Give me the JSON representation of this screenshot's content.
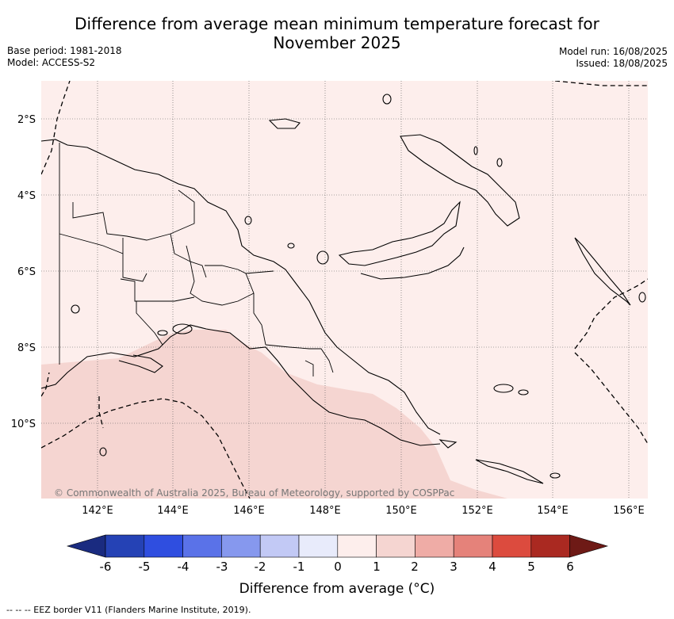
{
  "header": {
    "title_line1": "Difference from average mean minimum temperature forecast for",
    "title_line2": "November 2025",
    "base_period": "Base period: 1981-2018",
    "model": "Model: ACCESS-S2",
    "model_run": "Model run: 16/08/2025",
    "issued": "Issued: 18/08/2025"
  },
  "map": {
    "copyright": "© Commonwealth of Australia 2025, Bureau of Meteorology, supported by COSPPac",
    "lat_labels": [
      "2°S",
      "4°S",
      "6°S",
      "8°S",
      "10°S"
    ],
    "lon_labels": [
      "142°E",
      "144°E",
      "146°E",
      "148°E",
      "150°E",
      "152°E",
      "154°E",
      "156°E"
    ],
    "land_color": "#fdeeec",
    "anomaly_1_2_color": "#f5d5d1"
  },
  "colorbar": {
    "title": "Difference from average (°C)",
    "tick_labels": [
      "-6",
      "-5",
      "-4",
      "-3",
      "-2",
      "-1",
      "0",
      "1",
      "2",
      "3",
      "4",
      "5",
      "6"
    ],
    "colors": [
      "#1a2b80",
      "#2542b5",
      "#2f4ee0",
      "#5a72e8",
      "#8698ee",
      "#c2c9f5",
      "#e8ebfb",
      "#fdeeec",
      "#f5d5d1",
      "#efaca6",
      "#e5827a",
      "#dc4b3e",
      "#aa2921",
      "#6e1a16"
    ]
  },
  "footer": "-- -- -- EEZ border V11 (Flanders Marine Institute, 2019)."
}
